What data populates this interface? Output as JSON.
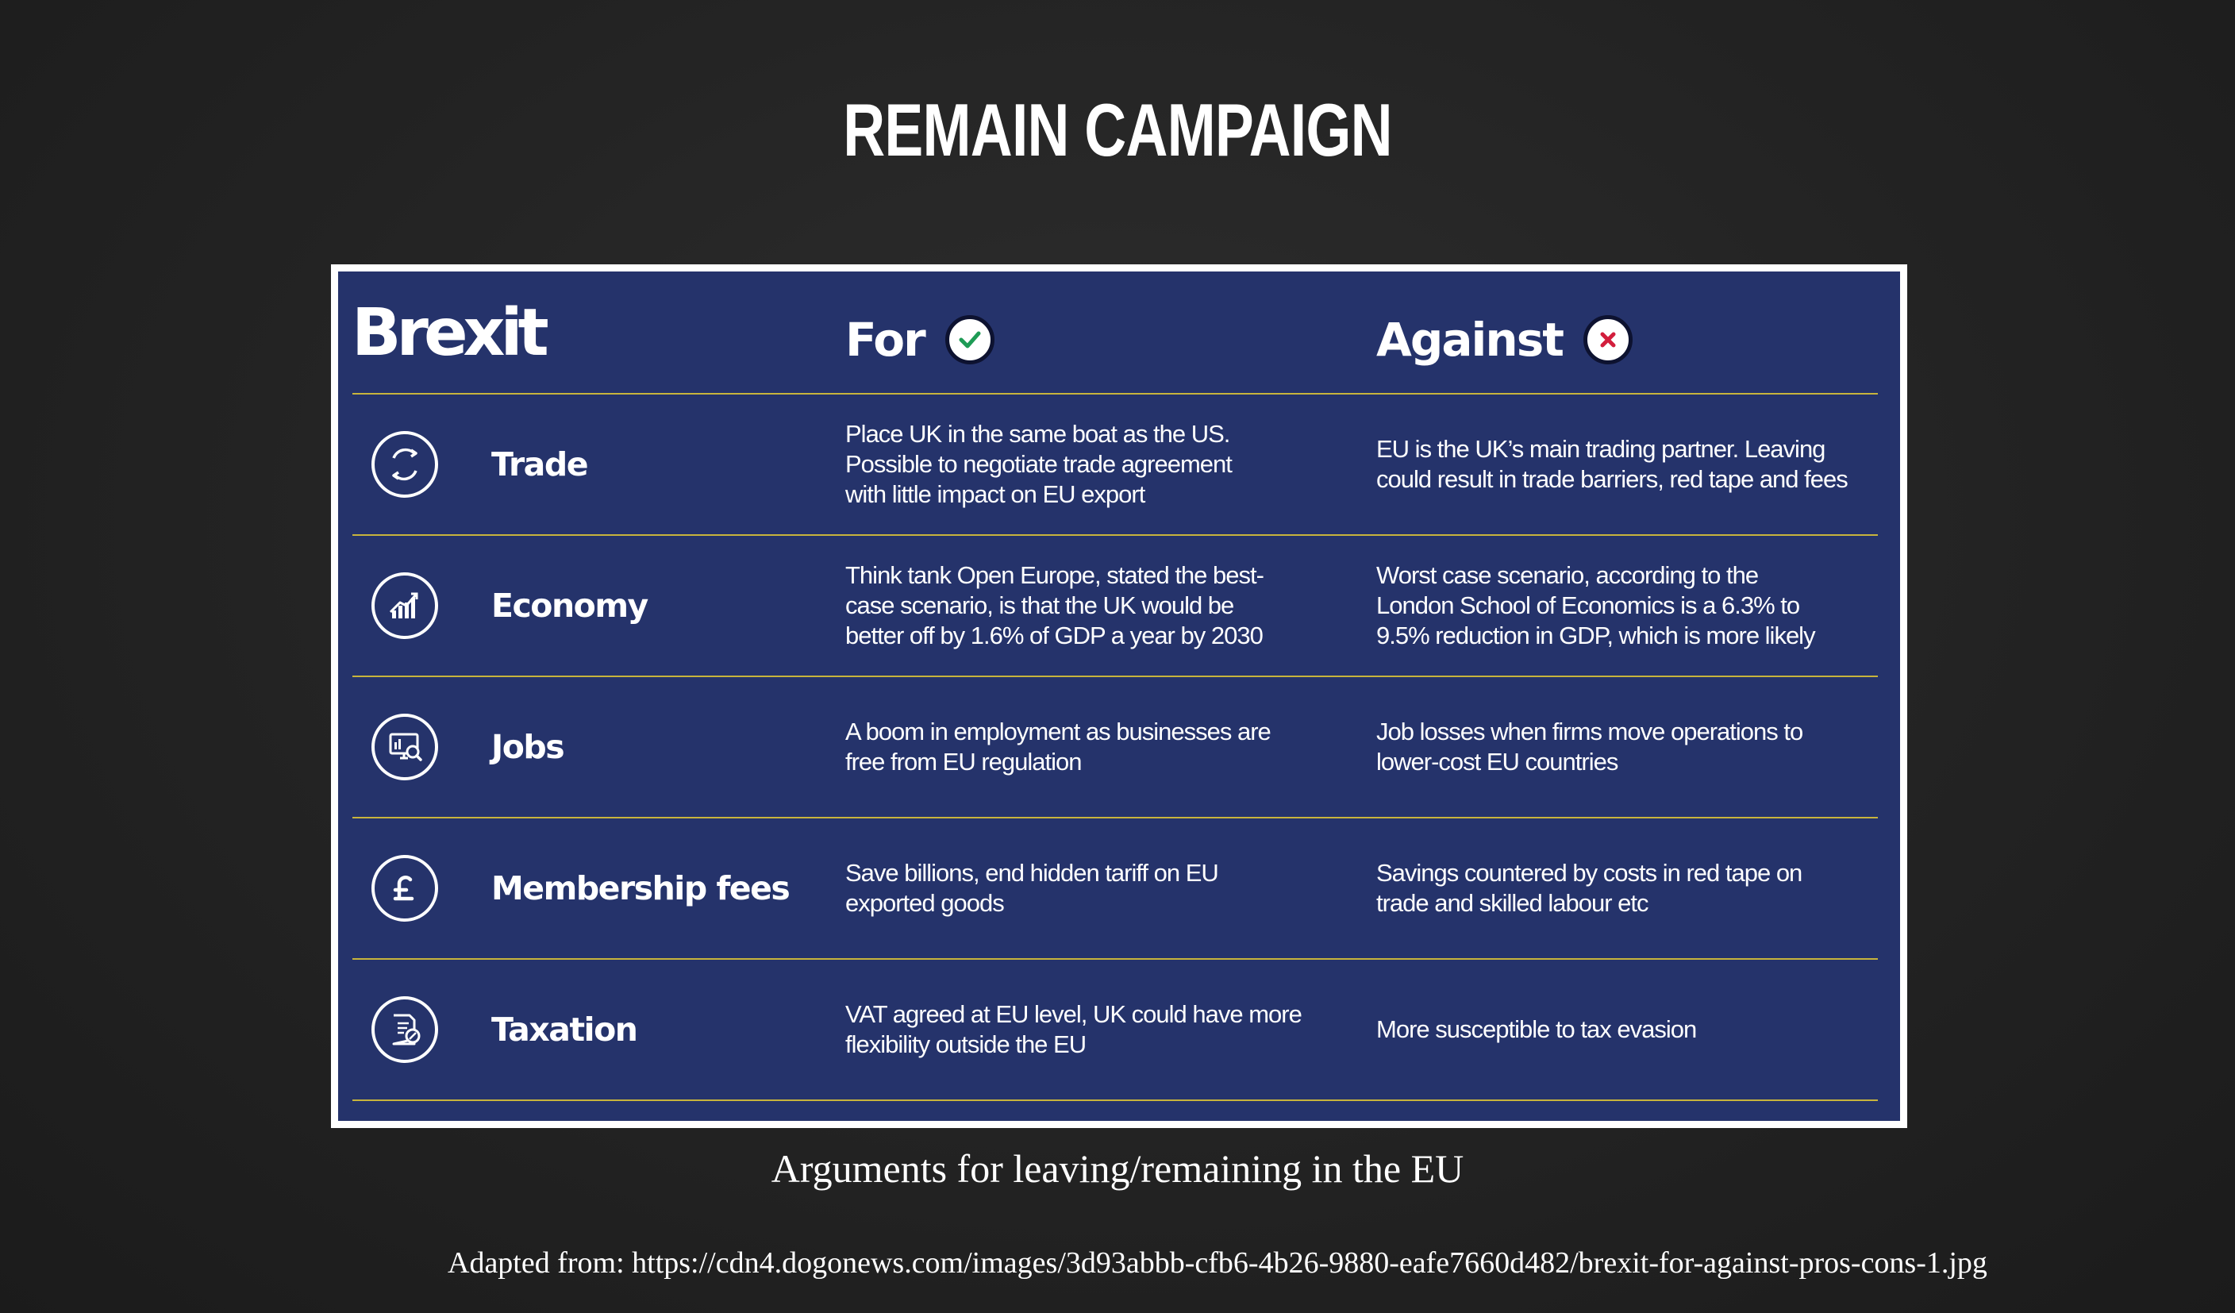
{
  "slide": {
    "title": "REMAIN CAMPAIGN",
    "caption": "Arguments for leaving/remaining in the EU",
    "source": "Adapted from: https://cdn4.dogonews.com/images/3d93abbb-cfb6-4b26-9880-eafe7660d482/brexit-for-against-pros-cons-1.jpg"
  },
  "infographic": {
    "brand": "Brexit",
    "for_heading": "For",
    "against_heading": "Against",
    "for_icon": "check-icon",
    "against_icon": "cross-icon",
    "colors": {
      "panel_background": "#25336b",
      "divider": "#c8b43c",
      "check": "#1e9b55",
      "cross": "#d21e3c"
    },
    "rows": [
      {
        "icon": "refresh-cycle-icon",
        "label": "Trade",
        "for": "Place UK in the same boat as the US.\nPossible to negotiate trade agreement\nwith little impact on EU export",
        "against": "EU is the UK’s main trading partner. Leaving\ncould result in trade barriers, red tape and fees"
      },
      {
        "icon": "growth-chart-icon",
        "label": "Economy",
        "for": "Think tank Open Europe, stated the best-\ncase scenario, is that the UK would be\nbetter off by 1.6% of GDP a year by 2030",
        "against": "Worst case scenario, according to the\nLondon School of Economics is a 6.3% to\n9.5% reduction in GDP, which is more likely"
      },
      {
        "icon": "job-search-icon",
        "label": "Jobs",
        "for": "A boom in employment as businesses are\nfree from EU regulation",
        "against": "Job losses when firms move operations to\nlower-cost EU countries"
      },
      {
        "icon": "pound-icon",
        "label": "Membership fees",
        "for": "Save billions, end hidden tariff on EU\nexported goods",
        "against": "Savings countered by costs in red tape on\ntrade and skilled labour etc"
      },
      {
        "icon": "tax-document-icon",
        "label": "Taxation",
        "for": "VAT agreed at EU level, UK could have more\nflexibility outside the EU",
        "against": "More susceptible to tax evasion"
      }
    ]
  }
}
